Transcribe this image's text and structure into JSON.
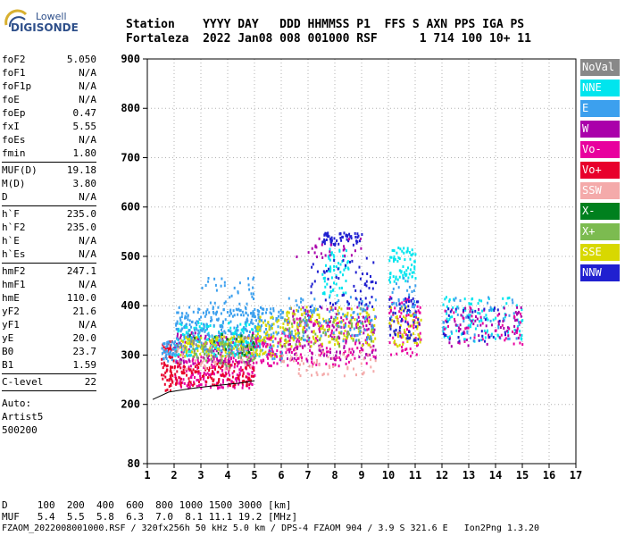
{
  "logo": {
    "line1": "Lowell",
    "line2": "DIGISONDE"
  },
  "header": {
    "line1": "Station    YYYY DAY   DDD HHMMSS P1  FFS S AXN PPS IGA PS",
    "line2": "Fortaleza  2022 Jan08 008 001000 RSF      1 714 100 10+ 11"
  },
  "params": {
    "group1": [
      {
        "label": "foF2",
        "value": "5.050"
      },
      {
        "label": "foF1",
        "value": "N/A"
      },
      {
        "label": "foF1p",
        "value": "N/A"
      },
      {
        "label": "foE",
        "value": "N/A"
      },
      {
        "label": "foEp",
        "value": "0.47"
      },
      {
        "label": "fxI",
        "value": "5.55"
      },
      {
        "label": "foEs",
        "value": "N/A"
      },
      {
        "label": "fmin",
        "value": "1.80"
      }
    ],
    "group2": [
      {
        "label": "MUF(D)",
        "value": "19.18"
      },
      {
        "label": "M(D)",
        "value": "3.80"
      },
      {
        "label": "D",
        "value": "N/A"
      }
    ],
    "group3": [
      {
        "label": "h`F",
        "value": "235.0"
      },
      {
        "label": "h`F2",
        "value": "235.0"
      },
      {
        "label": "h`E",
        "value": "N/A"
      },
      {
        "label": "h`Es",
        "value": "N/A"
      }
    ],
    "group4": [
      {
        "label": "hmF2",
        "value": "247.1"
      },
      {
        "label": "hmF1",
        "value": "N/A"
      },
      {
        "label": "hmE",
        "value": "110.0"
      },
      {
        "label": "yF2",
        "value": "21.6"
      },
      {
        "label": "yF1",
        "value": "N/A"
      },
      {
        "label": "yE",
        "value": "20.0"
      },
      {
        "label": "B0",
        "value": "23.7"
      },
      {
        "label": "B1",
        "value": "1.59"
      }
    ],
    "group5": [
      {
        "label": "C-level",
        "value": "22"
      }
    ],
    "auto": [
      "Auto:",
      "Artist5",
      "500200"
    ]
  },
  "legend": [
    {
      "label": "NoVal",
      "color": "#888888"
    },
    {
      "label": "NNE",
      "color": "#00e5ee"
    },
    {
      "label": "E",
      "color": "#3ca0ee"
    },
    {
      "label": "W",
      "color": "#aa00aa"
    },
    {
      "label": "Vo-",
      "color": "#e8009e"
    },
    {
      "label": "Vo+",
      "color": "#e8002c"
    },
    {
      "label": "SSW",
      "color": "#f4aaaa"
    },
    {
      "label": "X-",
      "color": "#00801e"
    },
    {
      "label": "X+",
      "color": "#7cbb50"
    },
    {
      "label": "SSE",
      "color": "#d8d800"
    },
    {
      "label": "NNW",
      "color": "#2020d0"
    }
  ],
  "bottom": {
    "line1": "D     100  200  400  600  800 1000 1500 3000 [km]",
    "line2": "MUF   5.4  5.5  5.8  6.3  7.0  8.1 11.1 19.2 [MHz]"
  },
  "footer": "FZAOM_2022008001000.RSF / 320fx256h 50 kHz 5.0 km / DPS-4 FZAOM 904 / 3.9 S 321.6 E   Ion2Png 1.3.20",
  "chart_data": {
    "type": "scatter",
    "xlim": [
      1,
      17
    ],
    "ylim": [
      80,
      900
    ],
    "x_ticks": [
      1,
      2,
      3,
      4,
      5,
      6,
      7,
      8,
      9,
      10,
      11,
      12,
      13,
      14,
      15,
      16,
      17
    ],
    "y_ticks": [
      80,
      200,
      300,
      400,
      500,
      600,
      700,
      800,
      900
    ],
    "grid": true,
    "legend_position": "right",
    "trace_points": [
      [
        1.2,
        210
      ],
      [
        1.8,
        225
      ],
      [
        2.6,
        232
      ],
      [
        3.5,
        238
      ],
      [
        4.4,
        243
      ],
      [
        5.0,
        248
      ]
    ],
    "clusters": [
      {
        "x": [
          1.5,
          2.0
        ],
        "y": [
          230,
          330
        ],
        "color": "#e8002c",
        "n": 70
      },
      {
        "x": [
          1.5,
          2.2
        ],
        "y": [
          290,
          330
        ],
        "color": "#3ca0ee",
        "n": 50
      },
      {
        "x": [
          2.0,
          5.0
        ],
        "y": [
          235,
          300
        ],
        "color": "#e8009e",
        "n": 190
      },
      {
        "x": [
          2.0,
          5.0
        ],
        "y": [
          240,
          290
        ],
        "color": "#e8002c",
        "n": 130
      },
      {
        "x": [
          2.0,
          5.0
        ],
        "y": [
          285,
          350
        ],
        "color": "#aa00aa",
        "n": 150
      },
      {
        "x": [
          2.0,
          5.2
        ],
        "y": [
          300,
          370
        ],
        "color": "#00e5ee",
        "n": 200
      },
      {
        "x": [
          2.0,
          5.2
        ],
        "y": [
          310,
          400
        ],
        "color": "#3ca0ee",
        "n": 220
      },
      {
        "x": [
          2.2,
          5.2
        ],
        "y": [
          300,
          340
        ],
        "color": "#d8d800",
        "n": 120
      },
      {
        "x": [
          3.0,
          5.0
        ],
        "y": [
          380,
          460
        ],
        "color": "#3ca0ee",
        "n": 50
      },
      {
        "x": [
          2.5,
          5.0
        ],
        "y": [
          280,
          330
        ],
        "color": "#7cbb50",
        "n": 40
      },
      {
        "x": [
          2.5,
          5.0
        ],
        "y": [
          300,
          350
        ],
        "color": "#00801e",
        "n": 25
      },
      {
        "x": [
          2.0,
          5.0
        ],
        "y": [
          270,
          320
        ],
        "color": "#f4aaaa",
        "n": 40
      },
      {
        "x": [
          2.0,
          5.0
        ],
        "y": [
          280,
          340
        ],
        "color": "#888888",
        "n": 40
      },
      {
        "x": [
          5.0,
          6.0
        ],
        "y": [
          290,
          400
        ],
        "color": "#3ca0ee",
        "n": 90
      },
      {
        "x": [
          5.0,
          6.0
        ],
        "y": [
          300,
          380
        ],
        "color": "#d8d800",
        "n": 60
      },
      {
        "x": [
          5.0,
          6.0
        ],
        "y": [
          280,
          340
        ],
        "color": "#e8009e",
        "n": 50
      },
      {
        "x": [
          6.0,
          9.5
        ],
        "y": [
          280,
          380
        ],
        "color": "#e8009e",
        "n": 150
      },
      {
        "x": [
          6.0,
          9.5
        ],
        "y": [
          290,
          400
        ],
        "color": "#aa00aa",
        "n": 150
      },
      {
        "x": [
          6.0,
          9.5
        ],
        "y": [
          320,
          400
        ],
        "color": "#d8d800",
        "n": 160
      },
      {
        "x": [
          6.0,
          9.5
        ],
        "y": [
          330,
          420
        ],
        "color": "#3ca0ee",
        "n": 120
      },
      {
        "x": [
          6.0,
          9.5
        ],
        "y": [
          260,
          320
        ],
        "color": "#f4aaaa",
        "n": 60
      },
      {
        "x": [
          6.0,
          9.5
        ],
        "y": [
          320,
          380
        ],
        "color": "#7cbb50",
        "n": 50
      },
      {
        "x": [
          7.5,
          8.5
        ],
        "y": [
          420,
          520
        ],
        "color": "#00e5ee",
        "n": 60
      },
      {
        "x": [
          7.0,
          9.5
        ],
        "y": [
          400,
          500
        ],
        "color": "#2020d0",
        "n": 60
      },
      {
        "x": [
          7.5,
          9.0
        ],
        "y": [
          525,
          550
        ],
        "color": "#2020d0",
        "n": 60
      },
      {
        "x": [
          6.5,
          9.0
        ],
        "y": [
          500,
          540
        ],
        "color": "#aa00aa",
        "n": 25
      },
      {
        "x": [
          10.0,
          11.2
        ],
        "y": [
          300,
          420
        ],
        "color": "#e8009e",
        "n": 70
      },
      {
        "x": [
          10.0,
          11.2
        ],
        "y": [
          320,
          400
        ],
        "color": "#d8d800",
        "n": 60
      },
      {
        "x": [
          10.0,
          11.2
        ],
        "y": [
          330,
          420
        ],
        "color": "#2020d0",
        "n": 60
      },
      {
        "x": [
          10.0,
          11.0
        ],
        "y": [
          450,
          520
        ],
        "color": "#00e5ee",
        "n": 70
      },
      {
        "x": [
          10.0,
          11.0
        ],
        "y": [
          380,
          460
        ],
        "color": "#3ca0ee",
        "n": 30
      },
      {
        "x": [
          12.0,
          15.0
        ],
        "y": [
          330,
          420
        ],
        "color": "#00e5ee",
        "n": 100
      },
      {
        "x": [
          12.0,
          15.0
        ],
        "y": [
          330,
          420
        ],
        "color": "#3ca0ee",
        "n": 50
      },
      {
        "x": [
          12.0,
          15.0
        ],
        "y": [
          320,
          400
        ],
        "color": "#aa00aa",
        "n": 60
      },
      {
        "x": [
          12.0,
          15.0
        ],
        "y": [
          320,
          400
        ],
        "color": "#e8009e",
        "n": 40
      },
      {
        "x": [
          12.0,
          14.5
        ],
        "y": [
          330,
          400
        ],
        "color": "#2020d0",
        "n": 30
      }
    ]
  }
}
